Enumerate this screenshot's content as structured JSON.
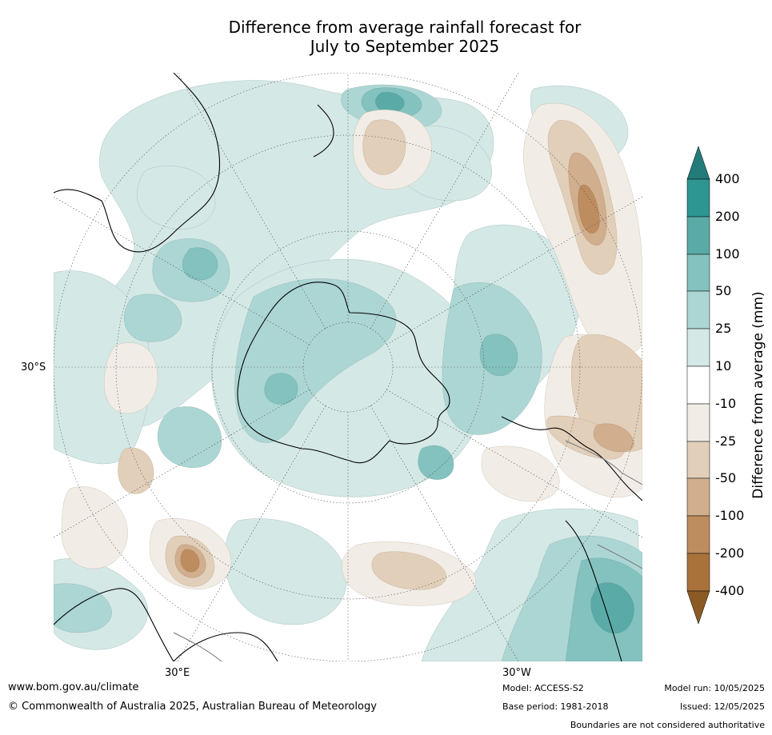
{
  "title_line1": "Difference from average rainfall forecast for",
  "title_line2": "July to September 2025",
  "map": {
    "projection": "south polar stereographic",
    "lat_label": "30°S",
    "lon_labels": [
      "30°E",
      "30°W"
    ]
  },
  "colorbar": {
    "title": "Difference from average (mm)",
    "labels": [
      "400",
      "200",
      "100",
      "50",
      "25",
      "10",
      "-10",
      "-25",
      "-50",
      "-100",
      "-200",
      "-400"
    ],
    "colors": [
      "#8c5a24",
      "#a8723a",
      "#bd8c5f",
      "#d0ae8e",
      "#e2cfba",
      "#f1ede6",
      "#ffffff",
      "#d4e8e6",
      "#acd6d3",
      "#83c2be",
      "#5aaaa8",
      "#2d9592",
      "#237c7a"
    ]
  },
  "footer": {
    "website": "www.bom.gov.au/climate",
    "copyright": "© Commonwealth of Australia 2025, Australian Bureau of Meteorology",
    "model": "Model: ACCESS-S2",
    "base_period": "Base period: 1981-2018",
    "model_run": "Model run: 10/05/2025",
    "issued": "Issued: 12/05/2025",
    "disclaimer": "Boundaries are not considered authoritative"
  }
}
